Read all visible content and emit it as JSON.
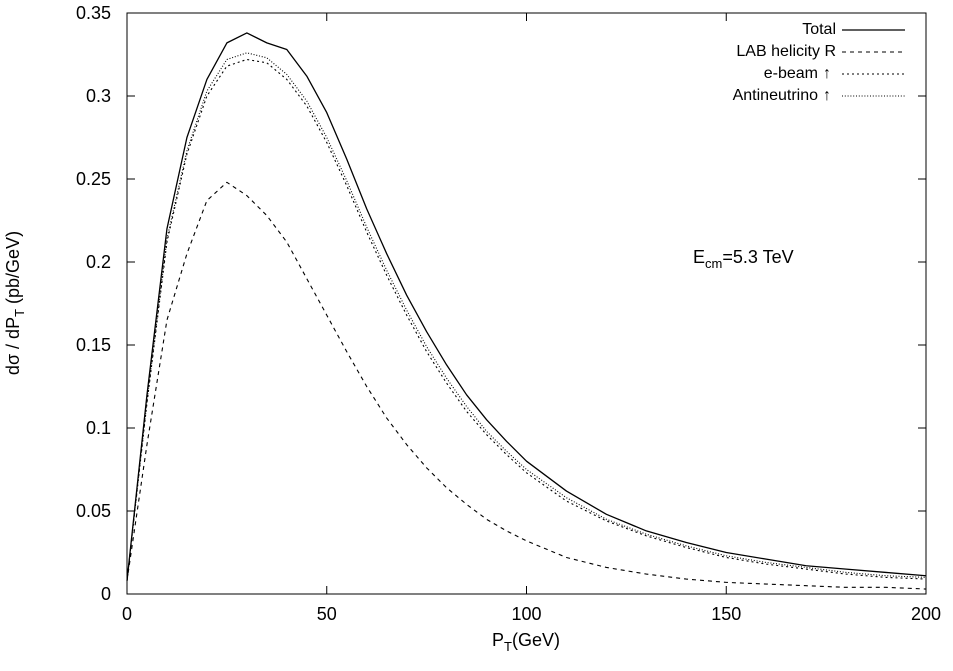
{
  "chart_data": {
    "type": "line",
    "xlabel": {
      "main": "P",
      "sub": "T",
      "tail": "(GeV)"
    },
    "ylabel": {
      "prefix": "dσ / dP",
      "sub": "T",
      "tail": " (pb/GeV)"
    },
    "xlim": [
      0,
      200
    ],
    "ylim": [
      0,
      0.35
    ],
    "x_ticks": [
      0,
      50,
      100,
      150,
      200
    ],
    "y_ticks": [
      0,
      0.05,
      0.1,
      0.15,
      0.2,
      0.25,
      0.3,
      0.35
    ],
    "x_tick_labels": [
      "0",
      "50",
      "100",
      "150",
      "200"
    ],
    "y_tick_labels": [
      "0",
      "0.05",
      "0.1",
      "0.15",
      "0.2",
      "0.25",
      "0.3",
      "0.35"
    ],
    "grid": false,
    "legend_position": "top-right",
    "annotation": {
      "prefix": "E",
      "sub": "cm",
      "tail": "=5.3  TeV"
    },
    "x": [
      0,
      5,
      10,
      15,
      20,
      25,
      30,
      35,
      40,
      45,
      50,
      55,
      60,
      65,
      70,
      75,
      80,
      85,
      90,
      95,
      100,
      110,
      120,
      130,
      140,
      150,
      160,
      170,
      180,
      190,
      200
    ],
    "series": [
      {
        "name": "Total",
        "dash": "solid",
        "values": [
          0.008,
          0.12,
          0.22,
          0.275,
          0.31,
          0.332,
          0.338,
          0.332,
          0.328,
          0.312,
          0.29,
          0.262,
          0.232,
          0.205,
          0.18,
          0.158,
          0.138,
          0.12,
          0.105,
          0.092,
          0.08,
          0.062,
          0.048,
          0.038,
          0.031,
          0.025,
          0.021,
          0.017,
          0.015,
          0.013,
          0.011
        ]
      },
      {
        "name": "LAB  helicity R",
        "dash": "dashed",
        "values": [
          0.008,
          0.09,
          0.165,
          0.205,
          0.237,
          0.248,
          0.24,
          0.228,
          0.212,
          0.19,
          0.168,
          0.146,
          0.125,
          0.106,
          0.09,
          0.076,
          0.064,
          0.054,
          0.045,
          0.038,
          0.032,
          0.022,
          0.016,
          0.012,
          0.009,
          0.007,
          0.006,
          0.005,
          0.004,
          0.004,
          0.003
        ]
      },
      {
        "name": "e-beam",
        "dash": "dotted-wide",
        "values": [
          0.008,
          0.115,
          0.212,
          0.265,
          0.3,
          0.318,
          0.322,
          0.32,
          0.31,
          0.294,
          0.272,
          0.246,
          0.218,
          0.192,
          0.168,
          0.146,
          0.127,
          0.11,
          0.096,
          0.084,
          0.073,
          0.056,
          0.044,
          0.035,
          0.028,
          0.022,
          0.018,
          0.015,
          0.012,
          0.01,
          0.009
        ]
      },
      {
        "name": "Antineutrino",
        "dash": "dotted-fine",
        "values": [
          0.008,
          0.116,
          0.214,
          0.267,
          0.303,
          0.322,
          0.326,
          0.323,
          0.313,
          0.297,
          0.275,
          0.249,
          0.221,
          0.195,
          0.171,
          0.149,
          0.13,
          0.113,
          0.098,
          0.086,
          0.075,
          0.058,
          0.045,
          0.036,
          0.029,
          0.023,
          0.019,
          0.016,
          0.013,
          0.011,
          0.01
        ]
      }
    ]
  },
  "legend": {
    "labels": [
      "Total",
      "LAB  helicity R",
      "e-beam",
      "Antineutrino"
    ],
    "arrow": "↑"
  }
}
